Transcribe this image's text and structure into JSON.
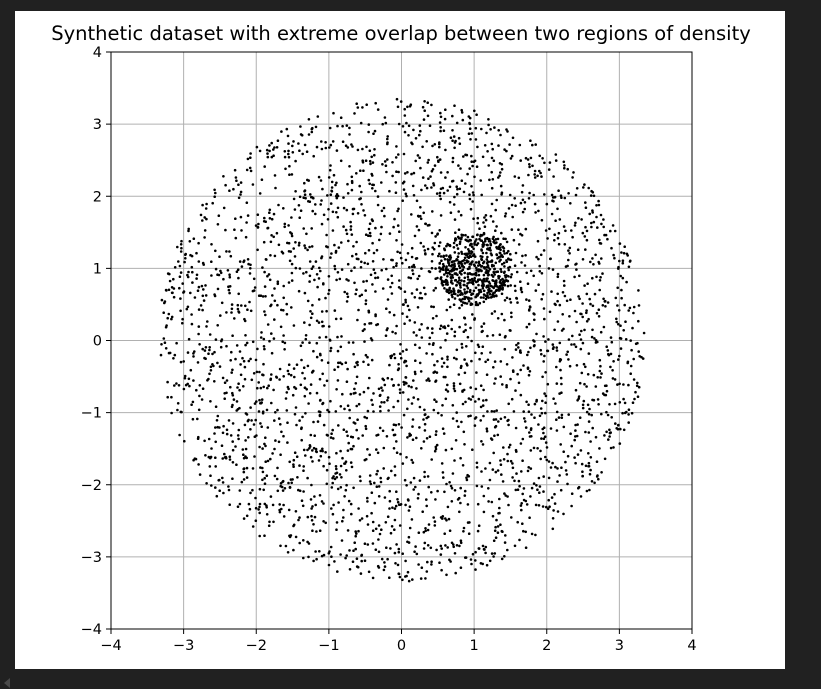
{
  "chart_data": {
    "type": "scatter",
    "title": "Synthetic dataset with extreme overlap between two regions of density",
    "xlabel": "",
    "ylabel": "",
    "xlim": [
      -4,
      4
    ],
    "ylim": [
      -4,
      4
    ],
    "xticks": [
      -4,
      -3,
      -2,
      -1,
      0,
      1,
      2,
      3,
      4
    ],
    "yticks": [
      -4,
      -3,
      -2,
      -1,
      0,
      1,
      2,
      3,
      4
    ],
    "xtick_labels": [
      "−4",
      "−3",
      "−2",
      "−1",
      "0",
      "1",
      "2",
      "3",
      "4"
    ],
    "ytick_labels": [
      "−4",
      "−3",
      "−2",
      "−1",
      "0",
      "1",
      "2",
      "3",
      "4"
    ],
    "grid": true,
    "aspect": "equal",
    "marker_color": "#000000",
    "series": [
      {
        "distribution": "uniform-disk",
        "center": [
          0,
          0
        ],
        "radius": 3.35,
        "count": 3000
      },
      {
        "distribution": "uniform-disk",
        "center": [
          1,
          1
        ],
        "radius": 0.5,
        "count": 500
      }
    ]
  }
}
